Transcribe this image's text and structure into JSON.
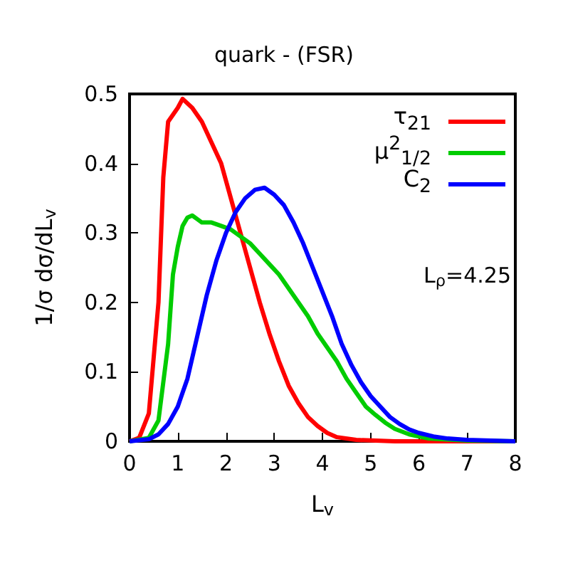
{
  "chart_data": {
    "type": "line",
    "title": "quark - (FSR)",
    "xlabel": "L$_{v}$",
    "ylabel": "1/σ dσ/dL$_{v}$",
    "annotations": [
      "L$_{ρ}$=4.25"
    ],
    "xlim": [
      0,
      8
    ],
    "xticks": [
      0,
      1,
      2,
      3,
      4,
      5,
      6,
      7,
      8
    ],
    "ylim": [
      0,
      0.5
    ],
    "yticks": [
      0,
      0.1,
      0.2,
      0.3,
      0.4,
      0.5
    ],
    "grid": false,
    "legend": "top right",
    "marker": "none",
    "line_style": "solid",
    "series": [
      {
        "name": "τ$_{21}$",
        "color": "#ff0000",
        "x": [
          0,
          0.2,
          0.4,
          0.6,
          0.7,
          0.8,
          1.0,
          1.1,
          1.3,
          1.5,
          1.7,
          1.9,
          2.1,
          2.3,
          2.5,
          2.7,
          2.9,
          3.1,
          3.3,
          3.5,
          3.7,
          3.9,
          4.1,
          4.3,
          4.7,
          5.5,
          8
        ],
        "values": [
          0,
          0.005,
          0.04,
          0.2,
          0.38,
          0.46,
          0.48,
          0.493,
          0.48,
          0.46,
          0.43,
          0.4,
          0.35,
          0.3,
          0.25,
          0.2,
          0.155,
          0.115,
          0.08,
          0.055,
          0.035,
          0.022,
          0.012,
          0.006,
          0.002,
          0,
          0
        ]
      },
      {
        "name": "μ$^{2}$$_{1/2}$",
        "color": "#00cc00",
        "x": [
          0,
          0.4,
          0.6,
          0.8,
          0.9,
          1.0,
          1.1,
          1.2,
          1.3,
          1.4,
          1.5,
          1.7,
          1.9,
          2.1,
          2.3,
          2.5,
          2.7,
          2.9,
          3.1,
          3.3,
          3.5,
          3.7,
          3.9,
          4.1,
          4.3,
          4.5,
          4.7,
          4.9,
          5.1,
          5.3,
          5.5,
          5.8,
          6.2,
          7,
          8
        ],
        "values": [
          0,
          0.005,
          0.03,
          0.14,
          0.24,
          0.28,
          0.31,
          0.322,
          0.325,
          0.32,
          0.315,
          0.315,
          0.31,
          0.305,
          0.295,
          0.285,
          0.27,
          0.255,
          0.24,
          0.22,
          0.2,
          0.18,
          0.155,
          0.135,
          0.115,
          0.09,
          0.07,
          0.05,
          0.038,
          0.027,
          0.018,
          0.01,
          0.004,
          0.001,
          0
        ]
      },
      {
        "name": "C$_{2}$",
        "color": "#0000ff",
        "x": [
          0,
          0.4,
          0.6,
          0.8,
          1.0,
          1.2,
          1.4,
          1.6,
          1.8,
          2.0,
          2.2,
          2.4,
          2.6,
          2.8,
          3.0,
          3.2,
          3.4,
          3.6,
          3.8,
          4.0,
          4.2,
          4.4,
          4.6,
          4.8,
          5.0,
          5.2,
          5.4,
          5.6,
          5.8,
          6.0,
          6.3,
          6.6,
          7,
          8
        ],
        "values": [
          0,
          0.003,
          0.01,
          0.025,
          0.05,
          0.09,
          0.15,
          0.21,
          0.26,
          0.3,
          0.33,
          0.35,
          0.362,
          0.365,
          0.355,
          0.34,
          0.315,
          0.285,
          0.25,
          0.215,
          0.18,
          0.14,
          0.11,
          0.085,
          0.065,
          0.05,
          0.035,
          0.025,
          0.017,
          0.012,
          0.007,
          0.004,
          0.002,
          0
        ]
      }
    ]
  }
}
